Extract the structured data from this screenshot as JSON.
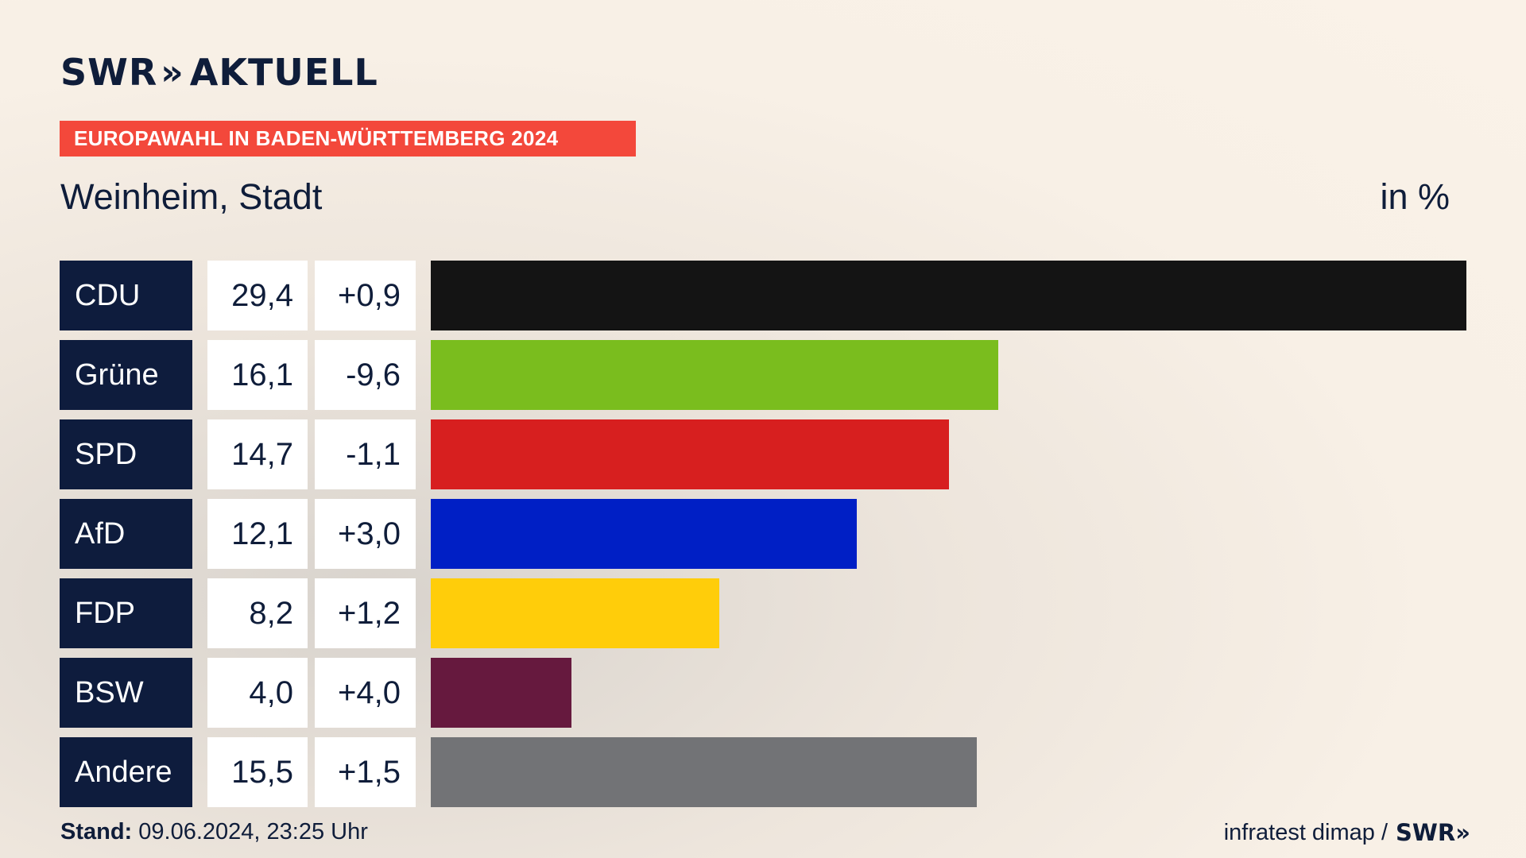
{
  "header": {
    "logo_brand": "SWR",
    "logo_chevron": "»",
    "logo_text": "AKTUELL",
    "banner": "EUROPAWAHL IN BADEN-WÜRTTEMBERG 2024",
    "region": "Weinheim, Stadt",
    "unit": "in %"
  },
  "chart_data": {
    "type": "bar",
    "orientation": "horizontal",
    "categories": [
      "CDU",
      "Grüne",
      "SPD",
      "AfD",
      "FDP",
      "BSW",
      "Andere"
    ],
    "values": [
      29.4,
      16.1,
      14.7,
      12.1,
      8.2,
      4.0,
      15.5
    ],
    "value_labels": [
      "29,4",
      "16,1",
      "14,7",
      "12,1",
      "8,2",
      "4,0",
      "15,5"
    ],
    "changes": [
      0.9,
      -9.6,
      -1.1,
      3.0,
      1.2,
      4.0,
      1.5
    ],
    "change_labels": [
      "+0,9",
      "-9,6",
      "-1,1",
      "+3,0",
      "+1,2",
      "+4,0",
      "+1,5"
    ],
    "colors": [
      "#141414",
      "#7abd1e",
      "#d71f1f",
      "#001fc5",
      "#ffcd0a",
      "#66193e",
      "#727376"
    ],
    "xlim": [
      0,
      29.4
    ]
  },
  "footer": {
    "stand_label": "Stand:",
    "stand_value": " 09.06.2024, 23:25 Uhr",
    "source": "infratest dimap /",
    "source_brand": "SWR",
    "source_chevron": "»"
  }
}
